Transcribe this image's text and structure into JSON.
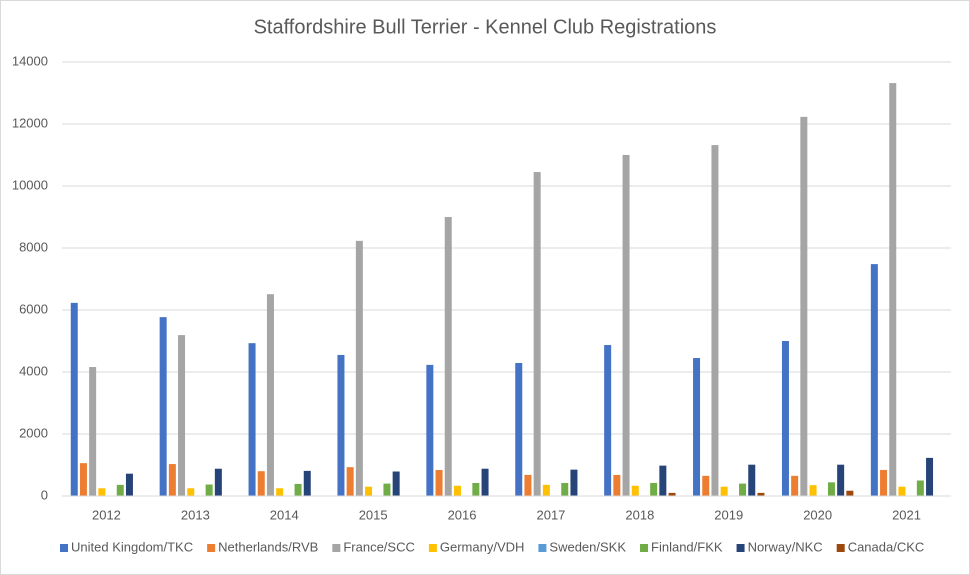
{
  "chart_data": {
    "type": "bar",
    "title": "Staffordshire Bull Terrier - Kennel Club Registrations",
    "categories": [
      "2012",
      "2013",
      "2014",
      "2015",
      "2016",
      "2017",
      "2018",
      "2019",
      "2020",
      "2021"
    ],
    "series": [
      {
        "name": "United Kingdom/TKC",
        "color": "#4472c4",
        "values": [
          6230,
          5770,
          4930,
          4550,
          4230,
          4290,
          4870,
          4450,
          5000,
          7480
        ]
      },
      {
        "name": "Netherlands/RVB",
        "color": "#ed7d31",
        "values": [
          1060,
          1030,
          800,
          930,
          840,
          680,
          680,
          650,
          650,
          840
        ]
      },
      {
        "name": "France/SCC",
        "color": "#a5a5a5",
        "values": [
          4160,
          5190,
          6510,
          8230,
          9000,
          10450,
          11000,
          11320,
          12230,
          13320
        ]
      },
      {
        "name": "Germany/VDH",
        "color": "#ffc000",
        "values": [
          250,
          250,
          250,
          300,
          330,
          360,
          330,
          300,
          350,
          300
        ]
      },
      {
        "name": "Sweden/SKK",
        "color": "#5b9bd5",
        "values": [
          null,
          null,
          null,
          null,
          null,
          null,
          null,
          null,
          null,
          null
        ]
      },
      {
        "name": "Finland/FKK",
        "color": "#70ad47",
        "values": [
          360,
          370,
          390,
          400,
          420,
          420,
          420,
          400,
          440,
          500
        ]
      },
      {
        "name": "Norway/NKC",
        "color": "#264478",
        "values": [
          720,
          880,
          810,
          790,
          880,
          850,
          980,
          1010,
          1010,
          1230
        ]
      },
      {
        "name": "Canada/CKC",
        "color": "#9e480e",
        "values": [
          null,
          null,
          null,
          null,
          null,
          null,
          100,
          100,
          170,
          null
        ]
      }
    ],
    "ylim": [
      0,
      14000
    ],
    "yticks": [
      0,
      2000,
      4000,
      6000,
      8000,
      10000,
      12000,
      14000
    ],
    "grid": true,
    "legend": "bottom"
  }
}
